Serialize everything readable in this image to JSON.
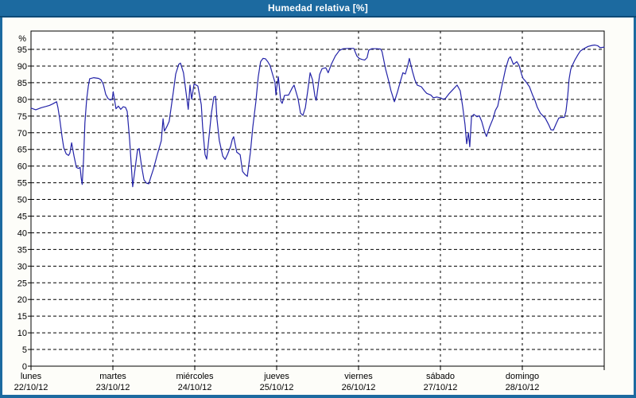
{
  "window": {
    "title": "Humedad relativa [%]"
  },
  "colors": {
    "titlebar": "#1c6aa0",
    "titlebar_separator": "#0b4a78",
    "title_text": "#ffffff",
    "panel_background": "#fdfdf9",
    "plot_background": "#ffffff",
    "axis_frame": "#000000",
    "grid": "#000000",
    "line": "#2323a8",
    "label_text": "#000000"
  },
  "chart_data": {
    "type": "line",
    "title": "Humedad relativa [%]",
    "ylabel": "%",
    "xlabel": "",
    "grid": true,
    "legend": "none",
    "ylim": [
      0,
      100.5
    ],
    "yticks": [
      0,
      5,
      10,
      15,
      20,
      25,
      30,
      35,
      40,
      45,
      50,
      55,
      60,
      65,
      70,
      75,
      80,
      85,
      90,
      95
    ],
    "x_unit": "hours_since_monday_00",
    "xlim": [
      0,
      168
    ],
    "x_gridline_hours": [
      24,
      48,
      72,
      96,
      120,
      144
    ],
    "x_tick_hours": [
      0,
      24,
      48,
      72,
      96,
      120,
      144,
      168
    ],
    "days": [
      {
        "name": "lunes",
        "date": "22/10/12",
        "hour": 0
      },
      {
        "name": "martes",
        "date": "23/10/12",
        "hour": 24
      },
      {
        "name": "miércoles",
        "date": "24/10/12",
        "hour": 48
      },
      {
        "name": "jueves",
        "date": "25/10/12",
        "hour": 72
      },
      {
        "name": "viernes",
        "date": "26/10/12",
        "hour": 96
      },
      {
        "name": "sábado",
        "date": "27/10/12",
        "hour": 120
      },
      {
        "name": "domingo",
        "date": "28/10/12",
        "hour": 144
      }
    ],
    "series": [
      {
        "name": "Humedad relativa",
        "color": "#2323a8",
        "points": [
          [
            0,
            77.4
          ],
          [
            1.4,
            76.9
          ],
          [
            3,
            77.5
          ],
          [
            4.4,
            77.9
          ],
          [
            5.4,
            78.2
          ],
          [
            6.3,
            78.6
          ],
          [
            7.5,
            79.3
          ],
          [
            7.9,
            77.5
          ],
          [
            8.4,
            74.2
          ],
          [
            9.1,
            68.7
          ],
          [
            9.6,
            65.5
          ],
          [
            10.3,
            63.7
          ],
          [
            11,
            63.2
          ],
          [
            11.4,
            63.9
          ],
          [
            11.9,
            67
          ],
          [
            12.6,
            63
          ],
          [
            13.3,
            59.6
          ],
          [
            13.9,
            59.3
          ],
          [
            14.4,
            59.6
          ],
          [
            14.7,
            56.5
          ],
          [
            15,
            54.5
          ],
          [
            15.4,
            62
          ],
          [
            15.8,
            73
          ],
          [
            16.3,
            80
          ],
          [
            16.8,
            84
          ],
          [
            17.2,
            86.2
          ],
          [
            18.4,
            86.5
          ],
          [
            19.8,
            86.3
          ],
          [
            20.5,
            85.9
          ],
          [
            21.2,
            84.5
          ],
          [
            21.9,
            81.5
          ],
          [
            22.6,
            80.2
          ],
          [
            23.3,
            79.8
          ],
          [
            23.8,
            80.1
          ],
          [
            24.1,
            82.3
          ],
          [
            24.9,
            77.2
          ],
          [
            25.6,
            78
          ],
          [
            26.3,
            77
          ],
          [
            27,
            77.8
          ],
          [
            27.7,
            77.6
          ],
          [
            28.2,
            76.4
          ],
          [
            28.9,
            68
          ],
          [
            29.4,
            60
          ],
          [
            29.8,
            53.8
          ],
          [
            30.5,
            59.2
          ],
          [
            31.2,
            64.7
          ],
          [
            31.7,
            65.3
          ],
          [
            32.4,
            60.1
          ],
          [
            33.1,
            55.9
          ],
          [
            33.8,
            54.9
          ],
          [
            34.5,
            54.7
          ],
          [
            35.2,
            57
          ],
          [
            35.9,
            59.2
          ],
          [
            37,
            63.4
          ],
          [
            38.2,
            67.6
          ],
          [
            38.7,
            74.2
          ],
          [
            39.1,
            70.5
          ],
          [
            39.8,
            71.8
          ],
          [
            40.5,
            73.4
          ],
          [
            41.7,
            82.2
          ],
          [
            42.4,
            87.6
          ],
          [
            43.3,
            90.5
          ],
          [
            43.8,
            90.9
          ],
          [
            44.7,
            88
          ],
          [
            45.7,
            80.1
          ],
          [
            46.1,
            77
          ],
          [
            46.6,
            84.3
          ],
          [
            47.1,
            80.1
          ],
          [
            47.8,
            84.6
          ],
          [
            48.2,
            84.4
          ],
          [
            48.9,
            84
          ],
          [
            49.9,
            78.4
          ],
          [
            50.3,
            71.7
          ],
          [
            51,
            63.5
          ],
          [
            51.5,
            62.1
          ],
          [
            52.2,
            69
          ],
          [
            52.9,
            76
          ],
          [
            53.6,
            80.7
          ],
          [
            54.1,
            80.9
          ],
          [
            54.5,
            74.2
          ],
          [
            55.2,
            67.6
          ],
          [
            56.2,
            63
          ],
          [
            56.9,
            62
          ],
          [
            57.6,
            63.5
          ],
          [
            58.5,
            65.9
          ],
          [
            59,
            68
          ],
          [
            59.4,
            68.8
          ],
          [
            60.3,
            64.2
          ],
          [
            61.3,
            63.4
          ],
          [
            62,
            58.4
          ],
          [
            62.7,
            57.5
          ],
          [
            63.4,
            56.9
          ],
          [
            64.3,
            64.2
          ],
          [
            65,
            71.7
          ],
          [
            65.9,
            79.2
          ],
          [
            66.6,
            86.7
          ],
          [
            67.3,
            91.3
          ],
          [
            68,
            92.3
          ],
          [
            68.7,
            92.2
          ],
          [
            69.4,
            91.3
          ],
          [
            70.1,
            90.1
          ],
          [
            70.8,
            87.5
          ],
          [
            71.5,
            85.1
          ],
          [
            71.8,
            81.3
          ],
          [
            72,
            83.4
          ],
          [
            72.5,
            86.8
          ],
          [
            73.2,
            79.6
          ],
          [
            73.6,
            78.8
          ],
          [
            74.3,
            81.2
          ],
          [
            75.5,
            81.3
          ],
          [
            76.6,
            83.5
          ],
          [
            77.1,
            84.3
          ],
          [
            78.3,
            80.1
          ],
          [
            79,
            75.9
          ],
          [
            79.7,
            75.2
          ],
          [
            80.4,
            77.5
          ],
          [
            81.1,
            82.6
          ],
          [
            81.8,
            88
          ],
          [
            82.5,
            85.9
          ],
          [
            83.2,
            81
          ],
          [
            83.6,
            79.7
          ],
          [
            84.6,
            87.5
          ],
          [
            85.3,
            89.2
          ],
          [
            86.4,
            89.5
          ],
          [
            87.1,
            88
          ],
          [
            88,
            90.5
          ],
          [
            89.2,
            93
          ],
          [
            90.4,
            94.7
          ],
          [
            91.5,
            95.2
          ],
          [
            93.4,
            95.3
          ],
          [
            94.6,
            95.3
          ],
          [
            95.5,
            93
          ],
          [
            96.2,
            92.3
          ],
          [
            96.9,
            92
          ],
          [
            97.8,
            91.8
          ],
          [
            98.5,
            92.5
          ],
          [
            99,
            94.8
          ],
          [
            99.9,
            95.2
          ],
          [
            101.3,
            95.2
          ],
          [
            102.5,
            95.1
          ],
          [
            102.9,
            94.3
          ],
          [
            103.9,
            89.2
          ],
          [
            104.8,
            85.6
          ],
          [
            105.5,
            82.6
          ],
          [
            106.5,
            79.3
          ],
          [
            107.4,
            82.2
          ],
          [
            108.4,
            85.9
          ],
          [
            109,
            88
          ],
          [
            109.7,
            87.6
          ],
          [
            110.4,
            90
          ],
          [
            110.9,
            92.3
          ],
          [
            111.8,
            88.4
          ],
          [
            112.5,
            85.9
          ],
          [
            113.2,
            84.3
          ],
          [
            114.4,
            83.8
          ],
          [
            115.3,
            82.6
          ],
          [
            116,
            81.8
          ],
          [
            117.2,
            81.3
          ],
          [
            117.9,
            80.5
          ],
          [
            119,
            80.7
          ],
          [
            120.2,
            80.4
          ],
          [
            120.7,
            80.1
          ],
          [
            121.4,
            80.2
          ],
          [
            122.6,
            81.8
          ],
          [
            123.7,
            83
          ],
          [
            124.9,
            84.3
          ],
          [
            125.8,
            82.6
          ],
          [
            126.5,
            78
          ],
          [
            127.2,
            72.5
          ],
          [
            127.7,
            66.7
          ],
          [
            128.2,
            70
          ],
          [
            128.6,
            65.8
          ],
          [
            129.1,
            74.8
          ],
          [
            129.8,
            75.5
          ],
          [
            130.7,
            74.8
          ],
          [
            131.4,
            75.1
          ],
          [
            132.1,
            73.4
          ],
          [
            133,
            70.1
          ],
          [
            133.5,
            68.9
          ],
          [
            134.4,
            71.7
          ],
          [
            135.4,
            74.2
          ],
          [
            136.1,
            76.7
          ],
          [
            136.8,
            78
          ],
          [
            137.7,
            82.6
          ],
          [
            138.4,
            85.9
          ],
          [
            139.1,
            89.2
          ],
          [
            140,
            92.2
          ],
          [
            140.5,
            92.8
          ],
          [
            141.4,
            90.5
          ],
          [
            142.4,
            91.3
          ],
          [
            143.1,
            90.1
          ],
          [
            143.8,
            87.5
          ],
          [
            144.2,
            86.3
          ],
          [
            144.9,
            85.5
          ],
          [
            146.1,
            83.8
          ],
          [
            147,
            81.3
          ],
          [
            147.7,
            79.7
          ],
          [
            148.4,
            77.6
          ],
          [
            149.3,
            75.9
          ],
          [
            150,
            75.1
          ],
          [
            150.7,
            74.4
          ],
          [
            151.7,
            72.5
          ],
          [
            152.4,
            70.9
          ],
          [
            153.1,
            70.8
          ],
          [
            154,
            72.9
          ],
          [
            154.7,
            74.4
          ],
          [
            155.4,
            74.6
          ],
          [
            156.3,
            74.6
          ],
          [
            156.8,
            76.4
          ],
          [
            157.3,
            81
          ],
          [
            157.7,
            86
          ],
          [
            158.2,
            89
          ],
          [
            158.7,
            90.3
          ],
          [
            159.4,
            91.8
          ],
          [
            160.3,
            93.4
          ],
          [
            161,
            94.5
          ],
          [
            162.2,
            95.3
          ],
          [
            163.3,
            95.9
          ],
          [
            164.5,
            96.2
          ],
          [
            165.2,
            96.3
          ],
          [
            166.1,
            96.1
          ],
          [
            166.8,
            95.5
          ],
          [
            167.5,
            95.6
          ],
          [
            168,
            95.7
          ]
        ]
      }
    ]
  }
}
